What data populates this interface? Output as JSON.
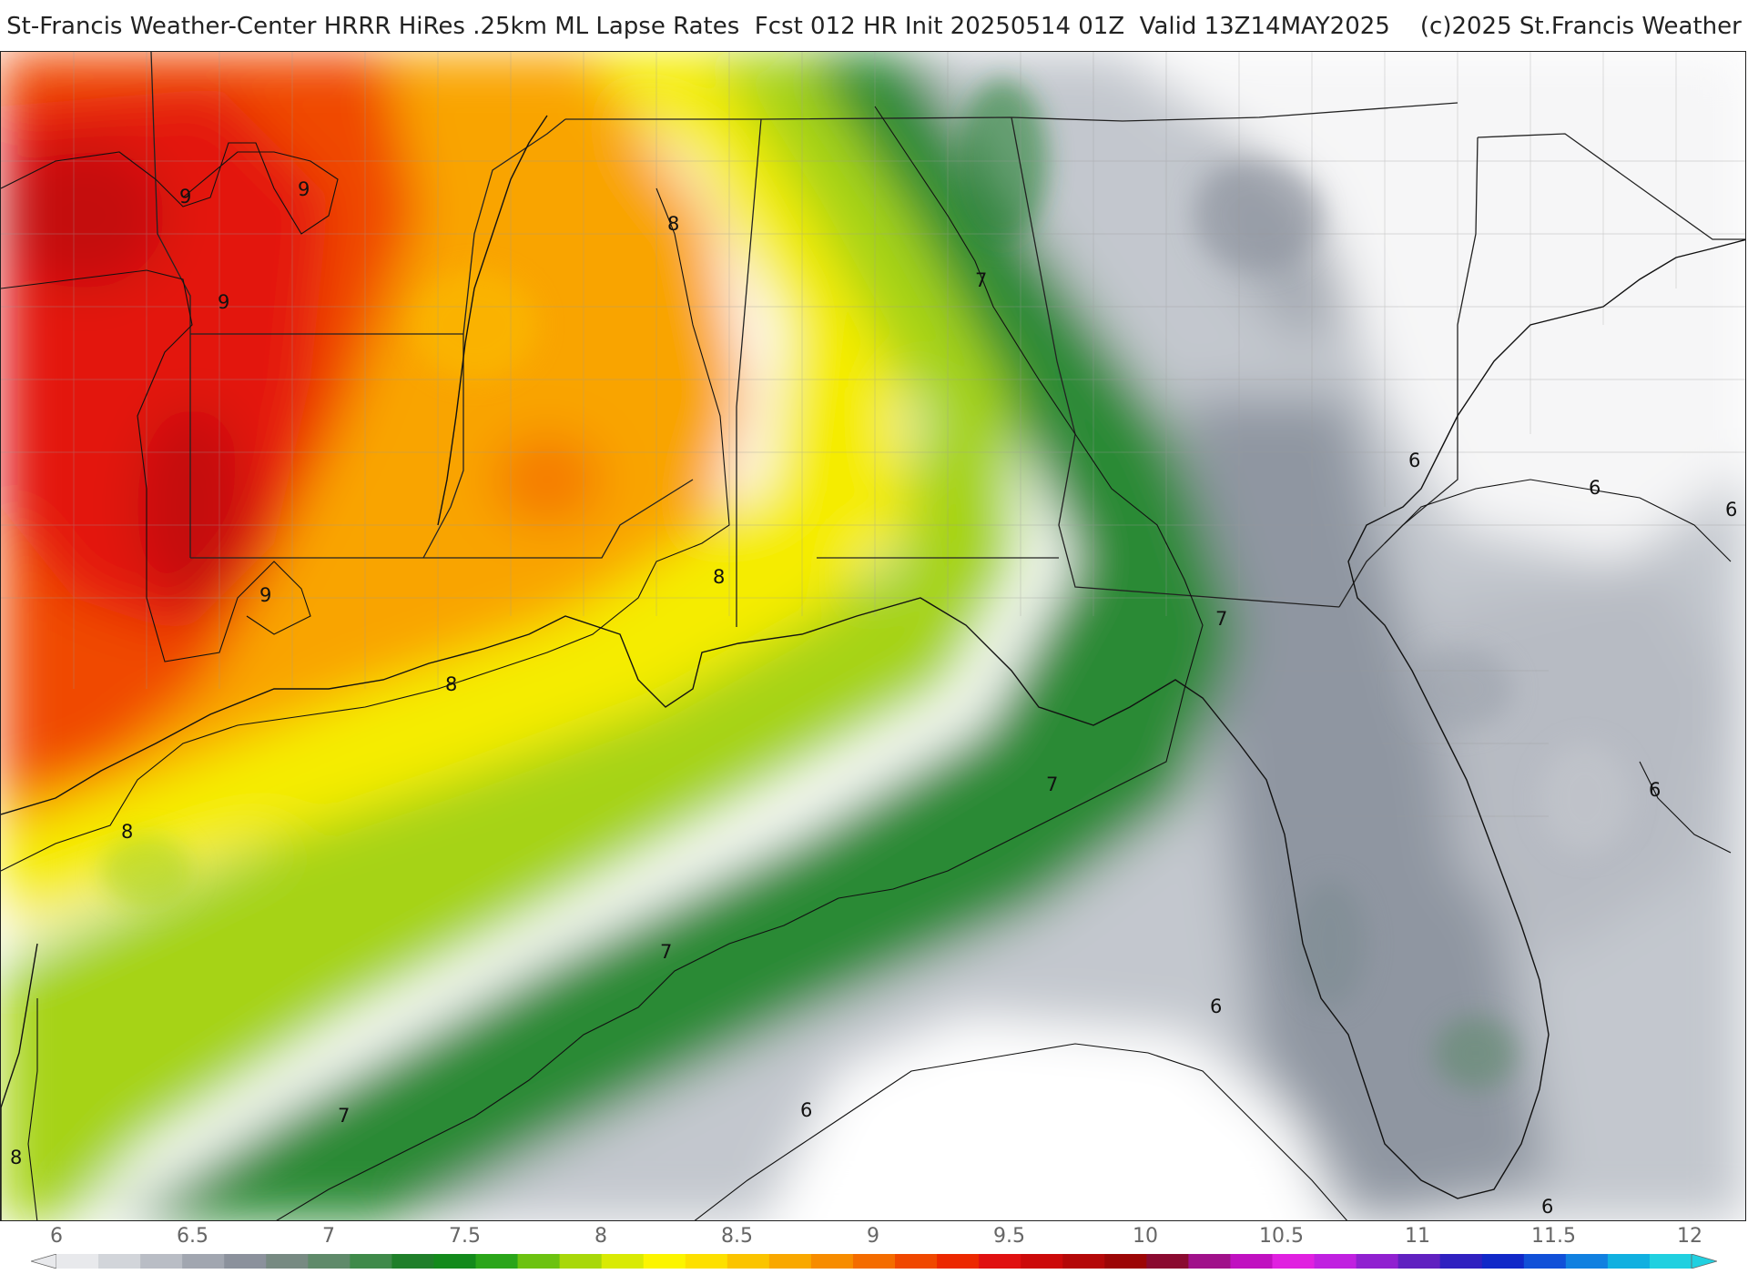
{
  "title": "St-Francis Weather-Center HRRR HiRes .25km ML Lapse Rates  Fcst 012 HR Init 20250514 01Z  Valid 13Z14MAY2025    (c)2025 St.Francis Weather",
  "map": {
    "contour_labels": [
      {
        "text": "9"
      },
      {
        "text": "9"
      },
      {
        "text": "9"
      },
      {
        "text": "9"
      },
      {
        "text": "8"
      },
      {
        "text": "8"
      },
      {
        "text": "8"
      },
      {
        "text": "8"
      },
      {
        "text": "8"
      },
      {
        "text": "7"
      },
      {
        "text": "7"
      },
      {
        "text": "7"
      },
      {
        "text": "7"
      },
      {
        "text": "7"
      },
      {
        "text": "6"
      },
      {
        "text": "6"
      },
      {
        "text": "6"
      },
      {
        "text": "6"
      },
      {
        "text": "6"
      },
      {
        "text": "6"
      },
      {
        "text": "6"
      }
    ]
  },
  "colorbar": {
    "ticks": [
      "6",
      "6.5",
      "7",
      "7.5",
      "8",
      "8.5",
      "9",
      "9.5",
      "10",
      "10.5",
      "11",
      "11.5",
      "12"
    ],
    "colors": [
      "#e8e9ec",
      "#d2d5da",
      "#b9bdc5",
      "#a1a6b0",
      "#8b919c",
      "#778a82",
      "#5f8a6a",
      "#3f8a4a",
      "#1f7f2a",
      "#138a1c",
      "#2aa51a",
      "#6cc210",
      "#a8d80a",
      "#d9ea04",
      "#fcf500",
      "#fde000",
      "#fbc400",
      "#f9a800",
      "#f78c00",
      "#f46c00",
      "#f04800",
      "#ec2800",
      "#e01010",
      "#cc0a0a",
      "#b40808",
      "#9c0606",
      "#8a0a30",
      "#a0108a",
      "#c010c0",
      "#e020e0",
      "#c020e0",
      "#9020d0",
      "#6020c0",
      "#3020c0",
      "#1028c8",
      "#1050d8",
      "#1080e0",
      "#10b0e0",
      "#20d0e0"
    ]
  }
}
